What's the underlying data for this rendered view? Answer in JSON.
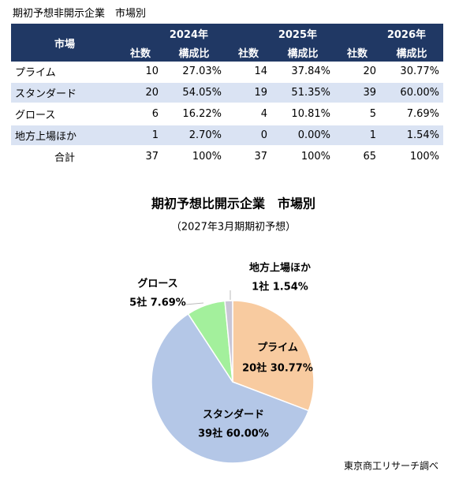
{
  "table": {
    "title": "期初予想非開示企業　市場別",
    "header": {
      "market": "市場",
      "years": [
        "2024年",
        "2025年",
        "2026年"
      ],
      "subheaders": [
        "社数",
        "構成比",
        "社数",
        "構成比",
        "社数",
        "構成比"
      ]
    },
    "rows": [
      [
        "プライム",
        "10",
        "27.03%",
        "14",
        "37.84%",
        "20",
        "30.77%"
      ],
      [
        "スタンダード",
        "20",
        "54.05%",
        "19",
        "51.35%",
        "39",
        "60.00%"
      ],
      [
        "グロース",
        "6",
        "16.22%",
        "4",
        "10.81%",
        "5",
        "7.69%"
      ],
      [
        "地方上場ほか",
        "1",
        "2.70%",
        "0",
        "0.00%",
        "1",
        "1.54%"
      ]
    ],
    "total": [
      "合計",
      "37",
      "100%",
      "37",
      "100%",
      "65",
      "100%"
    ]
  },
  "chart_data": {
    "type": "pie",
    "title": "期初予想比開示企業　市場別",
    "subtitle": "（2027年3月期期初予想）",
    "categories": [
      "プライム",
      "スタンダード",
      "グロース",
      "地方上場ほか"
    ],
    "values": [
      20,
      39,
      5,
      1
    ],
    "value_labels": [
      "20社 30.77%",
      "39社 60.00%",
      "5社 7.69%",
      "1社 1.54%"
    ],
    "colors": [
      "#f8cba0",
      "#b4c7e7",
      "#a3f09c",
      "#c9c6d6"
    ]
  },
  "source": "東京商工リサーチ調べ"
}
